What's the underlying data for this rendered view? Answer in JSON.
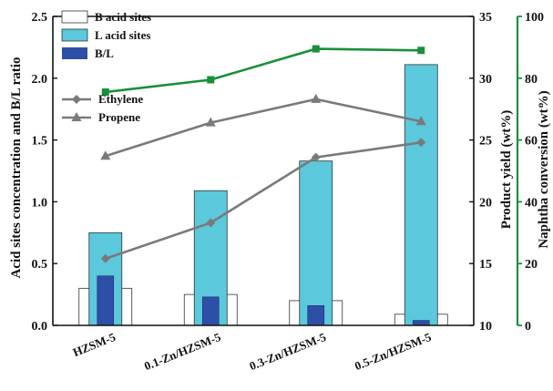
{
  "chart_data": {
    "type": "bar",
    "categories": [
      "HZSM-5",
      "0.1-Zn/HZSM-5",
      "0.3-Zn/HZSM-5",
      "0.5-Zn/HZSM-5"
    ],
    "left_axis": {
      "label": "Acid sites concentration  and B/L ratio",
      "ylim": [
        0,
        2.5
      ],
      "ticks": [
        "0.0",
        "0.5",
        "1.0",
        "1.5",
        "2.0",
        "2.5"
      ]
    },
    "right_axis_1": {
      "label": "Product yield (wt%)",
      "ylim": [
        10,
        35
      ],
      "ticks": [
        "10",
        "15",
        "20",
        "25",
        "30",
        "35"
      ]
    },
    "right_axis_2": {
      "label": "Naphtha conversion (wt%)",
      "ylim": [
        0,
        100
      ],
      "ticks": [
        "0",
        "20",
        "40",
        "60",
        "80",
        "100"
      ],
      "color": "#1a8f3a"
    },
    "bar_series": [
      {
        "name": "B acid sites",
        "values": [
          0.3,
          0.25,
          0.2,
          0.09
        ],
        "color": "#ffffff",
        "axis": "left"
      },
      {
        "name": "L acid sites",
        "values": [
          0.75,
          1.09,
          1.33,
          2.11
        ],
        "color": "#5bc8dc",
        "axis": "left"
      },
      {
        "name": "B/L",
        "values": [
          0.4,
          0.23,
          0.16,
          0.04
        ],
        "color": "#2e4fa8",
        "axis": "left"
      }
    ],
    "line_series": [
      {
        "name": "Ethylene",
        "values": [
          15.4,
          18.3,
          23.6,
          24.8
        ],
        "marker": "diamond",
        "color": "#7a7a7a",
        "axis": "right_1"
      },
      {
        "name": "Propene",
        "values": [
          23.7,
          26.4,
          28.3,
          26.5
        ],
        "marker": "triangle",
        "color": "#7a7a7a",
        "axis": "right_1"
      },
      {
        "name": "",
        "values": [
          75.5,
          79.5,
          89.5,
          89.0
        ],
        "marker": "square",
        "color": "#1a8f3a",
        "axis": "right_2"
      }
    ],
    "legend": {
      "position": "top-left",
      "items": [
        "B acid sites",
        "L acid sites",
        "B/L",
        "Ethylene",
        "Propene"
      ]
    }
  }
}
